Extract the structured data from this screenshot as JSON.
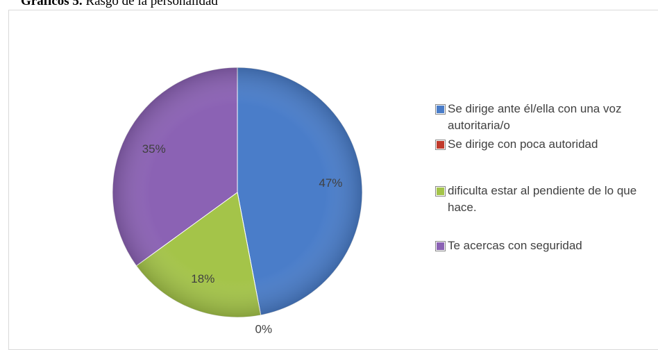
{
  "chart_data": {
    "type": "pie",
    "figure_label": "Gráficos 5.",
    "title": "Rasgo de la personalidad",
    "series": [
      {
        "name": "Se dirige ante él/ella con una voz autoritaria/o",
        "color": "#4a7dc9",
        "values": [
          47
        ],
        "value_labels": [
          "47%"
        ]
      },
      {
        "name": "Se dirige con poca autoridad",
        "color": "#c0392b",
        "values": [
          0
        ],
        "value_labels": [
          "0%"
        ]
      },
      {
        "name": "dificulta estar al pendiente de lo que hace.",
        "color": "#a4c449",
        "values": [
          18
        ],
        "value_labels": [
          "18%"
        ]
      },
      {
        "name": "Te acercas con seguridad",
        "color": "#8b62b4",
        "values": [
          35
        ],
        "value_labels": [
          "35%"
        ]
      }
    ]
  }
}
